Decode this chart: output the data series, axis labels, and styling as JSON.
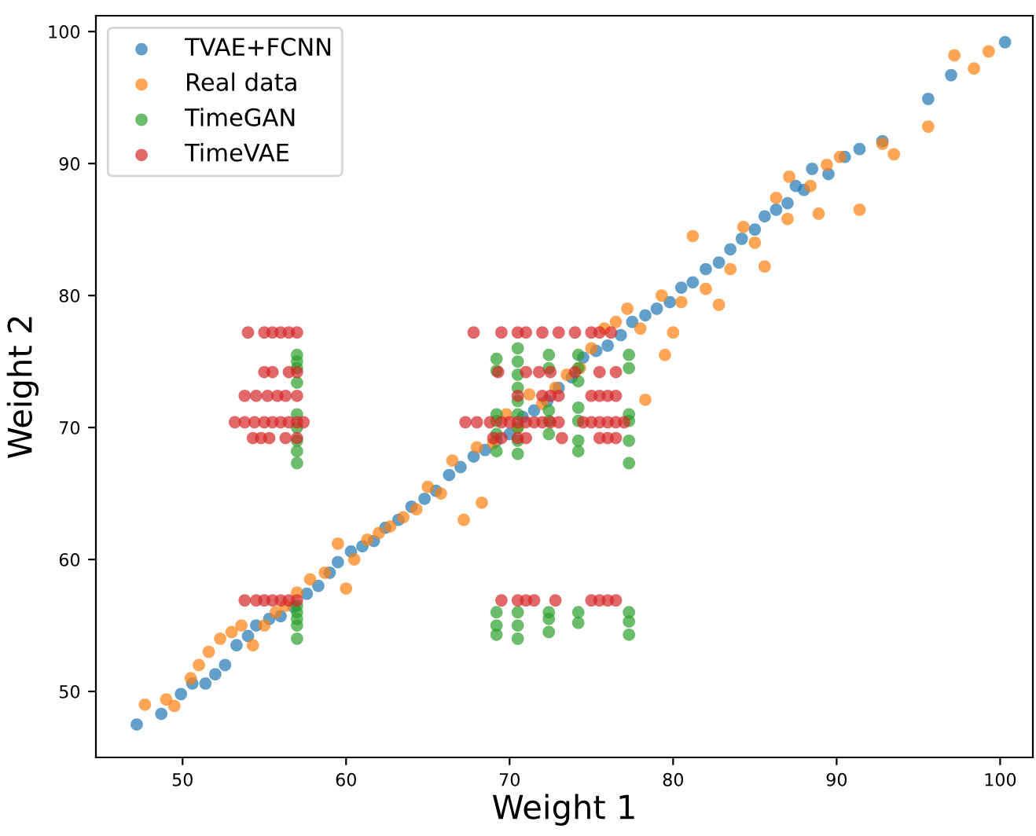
{
  "chart_data": {
    "type": "scatter",
    "xlabel": "Weight 1",
    "ylabel": "Weight 2",
    "xlim": [
      44.7,
      102
    ],
    "ylim": [
      45,
      101.2
    ],
    "xticks": [
      50,
      60,
      70,
      80,
      90,
      100
    ],
    "yticks": [
      50,
      60,
      70,
      80,
      90,
      100
    ],
    "grid": false,
    "legend": "top left",
    "marker": "circle",
    "series": [
      {
        "name": "TVAE+FCNN",
        "color": "#1f77b4",
        "x": [
          47.2,
          48.7,
          49.9,
          50.6,
          51.4,
          52.0,
          52.6,
          53.3,
          54.0,
          54.5,
          55.3,
          56.0,
          56.8,
          57.6,
          58.3,
          59.0,
          59.5,
          60.3,
          61.0,
          61.7,
          62.4,
          63.2,
          64.0,
          64.8,
          65.5,
          66.3,
          67.0,
          67.8,
          68.5,
          69.2,
          70.0,
          70.8,
          71.5,
          72.3,
          73.0,
          73.8,
          74.5,
          75.3,
          76.0,
          76.8,
          77.5,
          78.3,
          79.0,
          79.8,
          80.5,
          81.2,
          82.0,
          82.8,
          83.5,
          84.2,
          85.0,
          85.6,
          86.3,
          87.0,
          87.5,
          88.0,
          88.5,
          89.5,
          90.5,
          91.4,
          92.8,
          95.6,
          97.0,
          100.3
        ],
        "values": [
          47.5,
          48.3,
          49.8,
          50.6,
          50.6,
          51.3,
          52.0,
          53.5,
          54.2,
          55.0,
          55.5,
          55.7,
          56.4,
          57.4,
          58.0,
          59.0,
          59.8,
          60.6,
          61.0,
          61.4,
          62.4,
          63.0,
          64.0,
          64.6,
          65.2,
          66.4,
          67.0,
          67.8,
          68.3,
          69.0,
          69.5,
          70.8,
          71.3,
          72.0,
          73.0,
          73.8,
          75.3,
          75.8,
          76.2,
          77.0,
          78.0,
          78.5,
          79.0,
          79.5,
          80.6,
          81.0,
          82.0,
          82.5,
          83.5,
          84.3,
          85.0,
          86.0,
          86.5,
          87.0,
          88.3,
          88.0,
          89.6,
          89.2,
          90.5,
          91.1,
          91.7,
          94.9,
          96.7,
          99.2
        ]
      },
      {
        "name": "Real data",
        "color": "#ff7f0e",
        "x": [
          47.7,
          49.0,
          49.5,
          50.5,
          51.0,
          51.6,
          52.3,
          53.0,
          53.6,
          54.3,
          55.0,
          55.7,
          56.3,
          57.0,
          57.8,
          58.7,
          59.5,
          60.0,
          60.5,
          61.3,
          62.0,
          62.7,
          63.5,
          64.3,
          65.0,
          65.8,
          66.5,
          67.2,
          68.0,
          68.3,
          69.0,
          69.8,
          70.5,
          71.2,
          72.0,
          72.8,
          73.5,
          74.3,
          75.0,
          75.8,
          76.5,
          77.2,
          78.0,
          78.3,
          79.3,
          79.5,
          80.0,
          80.5,
          81.2,
          82.0,
          82.8,
          83.5,
          84.3,
          85.0,
          85.6,
          86.3,
          87.0,
          87.1,
          88.4,
          88.9,
          89.4,
          90.2,
          91.4,
          92.8,
          93.5,
          95.6,
          97.2,
          98.4,
          99.3
        ],
        "values": [
          49.0,
          49.4,
          48.9,
          51.0,
          52.0,
          53.0,
          54.0,
          54.5,
          55.0,
          53.5,
          55.0,
          56.0,
          56.5,
          57.5,
          58.5,
          59.0,
          61.2,
          57.8,
          60.0,
          61.5,
          62.0,
          62.5,
          63.2,
          63.8,
          65.5,
          65.0,
          67.5,
          63.0,
          68.5,
          64.3,
          68.8,
          71.0,
          70.0,
          72.5,
          71.8,
          73.0,
          74.0,
          74.5,
          76.0,
          77.5,
          78.0,
          79.0,
          77.5,
          72.1,
          80.0,
          75.5,
          77.2,
          79.5,
          84.5,
          80.5,
          79.3,
          82.0,
          85.2,
          84.0,
          82.2,
          87.4,
          85.8,
          89.0,
          88.3,
          86.2,
          89.9,
          90.5,
          86.5,
          91.5,
          90.7,
          92.8,
          98.2,
          97.2,
          98.5
        ]
      },
      {
        "name": "TimeGAN",
        "color": "#2ca02c",
        "x": [
          57.0,
          57.0,
          57.0,
          57.0,
          57.0,
          57.0,
          57.0,
          57.0,
          57.0,
          57.0,
          57.0,
          57.0,
          57.0,
          57.0,
          69.2,
          69.2,
          69.2,
          69.2,
          69.2,
          69.2,
          69.2,
          69.2,
          69.2,
          70.5,
          70.5,
          70.5,
          70.5,
          70.5,
          70.5,
          70.5,
          70.5,
          70.5,
          70.5,
          70.5,
          70.5,
          72.4,
          72.4,
          72.4,
          72.4,
          72.4,
          72.4,
          72.4,
          72.4,
          74.2,
          74.2,
          74.2,
          74.2,
          74.2,
          74.2,
          74.2,
          74.2,
          74.2,
          77.3,
          77.3,
          77.3,
          77.3,
          77.3,
          77.3,
          77.3,
          77.3,
          77.3
        ],
        "values": [
          54.0,
          55.0,
          55.5,
          56.0,
          56.5,
          67.3,
          68.2,
          69.0,
          70.0,
          71.0,
          73.4,
          74.5,
          75.0,
          75.5,
          54.3,
          55.0,
          56.0,
          68.2,
          69.5,
          70.5,
          71.0,
          74.3,
          75.2,
          54.0,
          55.0,
          56.0,
          68.0,
          69.0,
          70.0,
          71.0,
          72.0,
          73.0,
          74.0,
          75.0,
          76.0,
          54.5,
          55.5,
          56.0,
          69.5,
          70.5,
          71.3,
          74.5,
          75.5,
          55.2,
          56.0,
          68.2,
          69.0,
          70.5,
          71.5,
          73.5,
          74.5,
          75.5,
          54.3,
          55.3,
          56.0,
          67.3,
          69.0,
          70.5,
          71.0,
          74.5,
          75.5
        ]
      },
      {
        "name": "TimeVAE",
        "color": "#d62728",
        "x": [
          54.0,
          55.0,
          55.5,
          56.0,
          56.5,
          57.0,
          67.8,
          69.5,
          70.5,
          71.0,
          72.0,
          73.0,
          74.0,
          75.0,
          75.5,
          76.2,
          55.0,
          55.5,
          56.5,
          57.0,
          69.3,
          71.0,
          71.8,
          72.5,
          74.0,
          75.5,
          76.5,
          53.8,
          54.5,
          55.2,
          55.8,
          56.3,
          57.0,
          70.5,
          72.0,
          72.5,
          73.0,
          75.0,
          75.5,
          76.0,
          76.5,
          53.2,
          53.8,
          54.4,
          55.0,
          55.5,
          56.0,
          56.5,
          57.0,
          57.4,
          67.3,
          68.0,
          68.8,
          69.5,
          70.0,
          70.5,
          71.0,
          71.5,
          72.0,
          72.5,
          73.0,
          74.5,
          75.0,
          75.5,
          76.0,
          76.5,
          77.0,
          54.3,
          54.8,
          55.3,
          56.3,
          57.0,
          69.0,
          69.5,
          70.5,
          71.0,
          73.2,
          75.5,
          76.0,
          76.5,
          53.8,
          54.5,
          55.0,
          55.5,
          56.0,
          56.5,
          57.0,
          69.5,
          70.5,
          71.0,
          71.5,
          72.8,
          75.0,
          75.5,
          76.0,
          76.5
        ],
        "values": [
          77.2,
          77.2,
          77.2,
          77.2,
          77.2,
          77.2,
          77.2,
          77.2,
          77.2,
          77.2,
          77.2,
          77.2,
          77.2,
          77.2,
          77.2,
          77.2,
          74.2,
          74.2,
          74.2,
          74.2,
          74.2,
          74.2,
          74.2,
          74.2,
          74.2,
          74.2,
          74.2,
          72.4,
          72.4,
          72.4,
          72.4,
          72.4,
          72.4,
          72.4,
          72.4,
          72.4,
          72.4,
          72.4,
          72.4,
          72.4,
          72.4,
          70.4,
          70.4,
          70.4,
          70.4,
          70.4,
          70.4,
          70.4,
          70.4,
          70.4,
          70.4,
          70.4,
          70.4,
          70.4,
          70.4,
          70.4,
          70.4,
          70.4,
          70.4,
          70.4,
          70.4,
          70.4,
          70.4,
          70.4,
          70.4,
          70.4,
          70.4,
          69.2,
          69.2,
          69.2,
          69.2,
          69.2,
          69.2,
          69.2,
          69.2,
          69.2,
          69.2,
          69.2,
          69.2,
          69.2,
          56.9,
          56.9,
          56.9,
          56.9,
          56.9,
          56.9,
          56.9,
          56.9,
          56.9,
          56.9,
          56.9,
          56.9,
          56.9,
          56.9,
          56.9,
          56.9
        ]
      }
    ]
  }
}
